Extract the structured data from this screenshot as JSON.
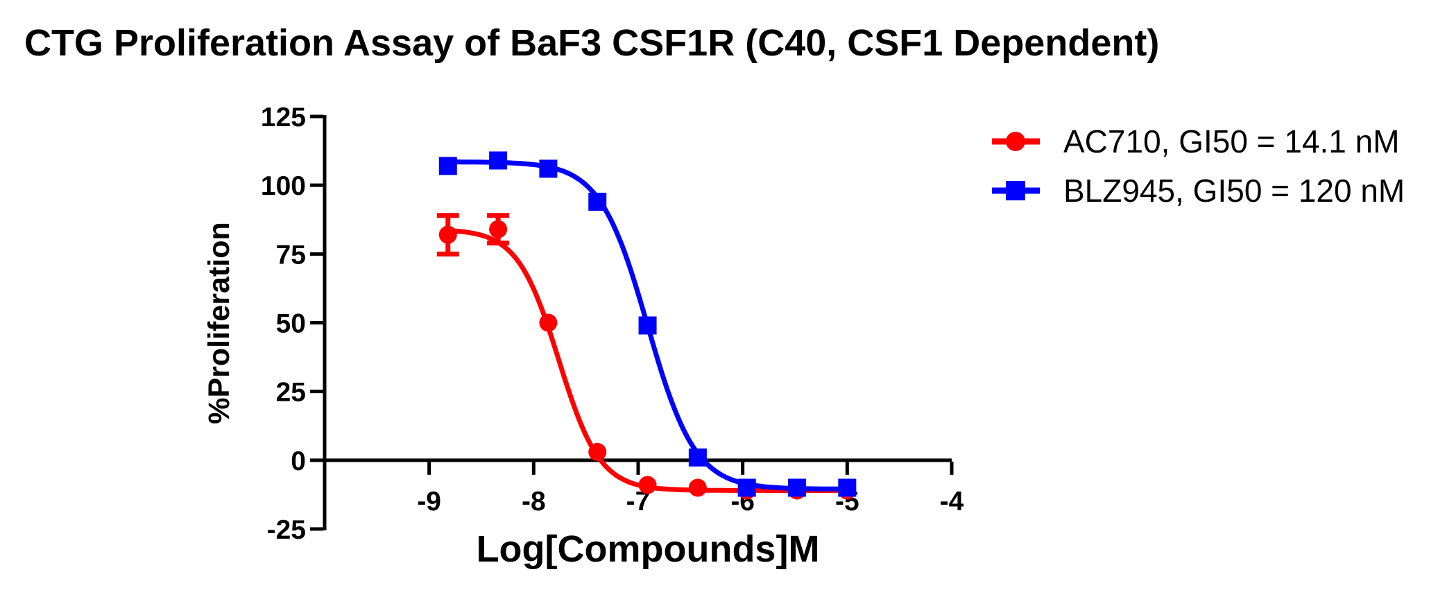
{
  "title": "CTG Proliferation Assay of BaF3 CSF1R (C40, CSF1 Dependent)",
  "chart_data": {
    "type": "scatter",
    "subtype": "dose-response-curve",
    "title": "CTG Proliferation Assay of BaF3 CSF1R (C40, CSF1 Dependent)",
    "xlabel": "Log[Compounds]M",
    "ylabel": "%Proliferation",
    "xlim": [
      -10,
      -4
    ],
    "ylim": [
      -25,
      125
    ],
    "x_ticks": [
      -9,
      -8,
      -7,
      -6,
      -5,
      -4
    ],
    "x_tick_labels": [
      "-9",
      "-8",
      "-7",
      "-6",
      "-5",
      "-4"
    ],
    "y_ticks": [
      -25,
      0,
      25,
      50,
      75,
      100,
      125
    ],
    "y_tick_labels": [
      "-25",
      "0",
      "25",
      "50",
      "75",
      "100",
      "125"
    ],
    "grid": false,
    "legend_position": "right",
    "axis_color": "#000000",
    "series": [
      {
        "name": "AC710, GI50 = 14.1 nM",
        "compound": "AC710",
        "gi50_label": "GI50 = 14.1 nM",
        "color": "#ff0000",
        "marker": "circle",
        "x": [
          -8.82,
          -8.34,
          -7.86,
          -7.39,
          -6.91,
          -6.43,
          -5.96,
          -5.48,
          -5.0
        ],
        "y": [
          82,
          84,
          50,
          3,
          -9,
          -10,
          -11,
          -11,
          -11
        ],
        "y_err": [
          7,
          5,
          0,
          0,
          0,
          0,
          0,
          0,
          0
        ],
        "fit": {
          "top": 84,
          "bottom": -11,
          "log_ec50": -7.76,
          "hill": 2.2
        }
      },
      {
        "name": "BLZ945, GI50 = 120 nM",
        "compound": "BLZ945",
        "gi50_label": "GI50 = 120 nM",
        "color": "#0000ff",
        "marker": "square",
        "x": [
          -8.82,
          -8.34,
          -7.86,
          -7.39,
          -6.91,
          -6.43,
          -5.96,
          -5.48,
          -5.0
        ],
        "y": [
          107,
          109,
          106,
          94,
          49,
          1,
          -10,
          -10,
          -10
        ],
        "y_err": [
          0,
          0,
          0,
          0,
          0,
          0,
          0,
          0,
          0
        ],
        "fit": {
          "top": 108.5,
          "bottom": -10.5,
          "log_ec50": -6.91,
          "hill": 1.9
        }
      }
    ]
  },
  "legend": {
    "items": [
      {
        "label": "AC710, GI50 = 14.1 nM",
        "color": "#ff0000",
        "marker": "circle"
      },
      {
        "label": "BLZ945, GI50 = 120 nM",
        "color": "#0000ff",
        "marker": "square"
      }
    ]
  }
}
